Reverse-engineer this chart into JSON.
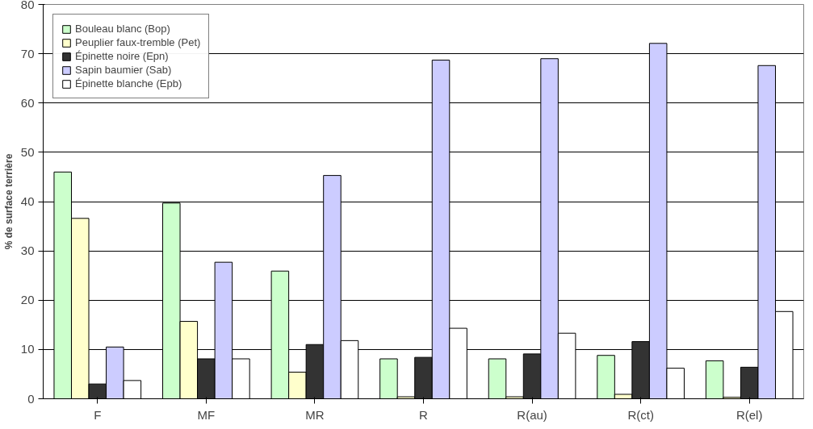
{
  "chart_data": {
    "type": "bar",
    "ylabel": "% de surface terrière",
    "categories": [
      "F",
      "MF",
      "MR",
      "R",
      "R(au)",
      "R(ct)",
      "R(el)"
    ],
    "series": [
      {
        "name": "Bouleau blanc (Bop)",
        "color": "#ccffcc",
        "values": [
          46,
          39.7,
          25.9,
          8.1,
          8.1,
          8.8,
          7.7
        ]
      },
      {
        "name": "Peuplier faux-tremble (Pet)",
        "color": "#ffffcc",
        "values": [
          36.6,
          15.7,
          5.4,
          0.4,
          0.4,
          0.9,
          0.3
        ]
      },
      {
        "name": "Épinette noire (Epn)",
        "color": "#333333",
        "values": [
          3.0,
          8.1,
          11.0,
          8.4,
          9.1,
          11.6,
          6.4
        ]
      },
      {
        "name": "Sapin baumier (Sab)",
        "color": "#ccccff",
        "values": [
          10.5,
          27.7,
          45.3,
          68.7,
          69.0,
          72.1,
          67.6
        ]
      },
      {
        "name": "Épinette blanche (Epb)",
        "color": "#ffffff",
        "values": [
          3.7,
          8.1,
          11.8,
          14.3,
          13.3,
          6.2,
          17.7
        ]
      }
    ],
    "ylim": [
      0,
      80
    ],
    "yticks": [
      0,
      10,
      20,
      30,
      40,
      50,
      60,
      70,
      80
    ],
    "grid": "y",
    "legend": "top left"
  }
}
